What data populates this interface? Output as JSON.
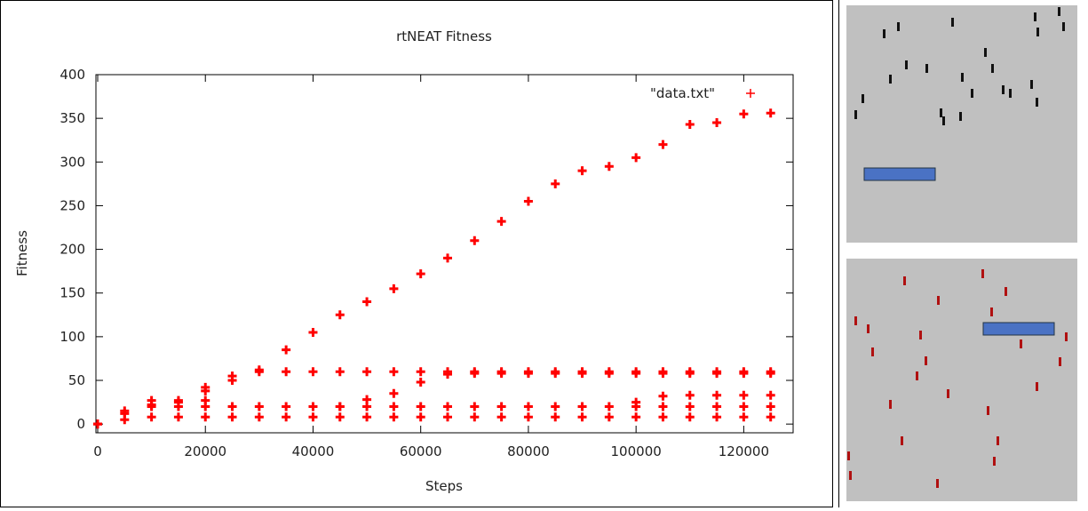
{
  "chart_data": {
    "type": "scatter",
    "title": "rtNEAT Fitness",
    "xlabel": "Steps",
    "ylabel": "Fitness",
    "xlim": [
      0,
      130000
    ],
    "ylim": [
      -10,
      400
    ],
    "xticks": [
      0,
      20000,
      40000,
      60000,
      80000,
      100000,
      120000
    ],
    "yticks": [
      0,
      50,
      100,
      150,
      200,
      250,
      300,
      350,
      400
    ],
    "grid": false,
    "legend": "upper right",
    "series": [
      {
        "name": "\"data.txt\"",
        "color": "#ff0000",
        "marker": "+",
        "x": [
          0,
          5000,
          10000,
          15000,
          20000,
          25000,
          30000,
          35000,
          40000,
          45000,
          50000,
          55000,
          60000,
          65000,
          70000,
          75000,
          80000,
          85000,
          90000,
          95000,
          100000,
          105000,
          110000,
          115000,
          120000,
          125000,
          20000,
          25000,
          30000,
          35000,
          40000,
          45000,
          50000,
          55000,
          60000,
          65000,
          70000,
          75000,
          80000,
          85000,
          90000,
          95000,
          100000,
          105000,
          110000,
          115000,
          120000,
          125000,
          0,
          5000,
          10000,
          15000,
          20000,
          25000,
          30000,
          35000,
          40000,
          45000,
          50000,
          55000,
          60000,
          65000,
          70000,
          75000,
          80000,
          85000,
          90000,
          95000,
          100000,
          105000,
          110000,
          115000,
          120000,
          125000,
          10000,
          15000,
          20000,
          45000,
          50000,
          55000,
          60000,
          65000,
          70000,
          75000,
          80000,
          85000,
          90000,
          95000,
          100000,
          105000,
          110000,
          115000,
          120000,
          125000,
          100000,
          105000,
          110000,
          115000,
          120000,
          125000,
          0,
          5000,
          10000,
          15000,
          20000,
          25000,
          30000,
          35000,
          40000,
          45000,
          50000,
          55000,
          60000,
          65000,
          70000,
          75000,
          80000,
          85000,
          90000,
          95000,
          100000,
          105000,
          110000,
          115000,
          120000,
          125000
        ],
        "values": [
          0,
          12,
          22,
          25,
          38,
          50,
          62,
          85,
          105,
          125,
          140,
          155,
          172,
          190,
          210,
          232,
          255,
          275,
          290,
          295,
          305,
          320,
          343,
          345,
          355,
          356,
          42,
          55,
          60,
          60,
          60,
          60,
          60,
          60,
          60,
          60,
          60,
          60,
          60,
          60,
          60,
          60,
          60,
          60,
          60,
          60,
          60,
          60,
          0,
          15,
          20,
          20,
          20,
          20,
          20,
          20,
          20,
          20,
          20,
          20,
          20,
          20,
          20,
          20,
          20,
          20,
          20,
          20,
          20,
          20,
          20,
          20,
          20,
          20,
          27,
          27,
          27,
          20,
          28,
          35,
          48,
          57,
          58,
          58,
          58,
          58,
          58,
          58,
          58,
          58,
          58,
          58,
          58,
          58,
          25,
          32,
          33,
          33,
          33,
          33,
          0,
          5,
          8,
          8,
          8,
          8,
          8,
          8,
          8,
          8,
          8,
          8,
          8,
          8,
          8,
          8,
          8,
          8,
          8,
          8,
          8,
          8,
          8,
          8,
          8,
          8
        ]
      }
    ]
  }
}
